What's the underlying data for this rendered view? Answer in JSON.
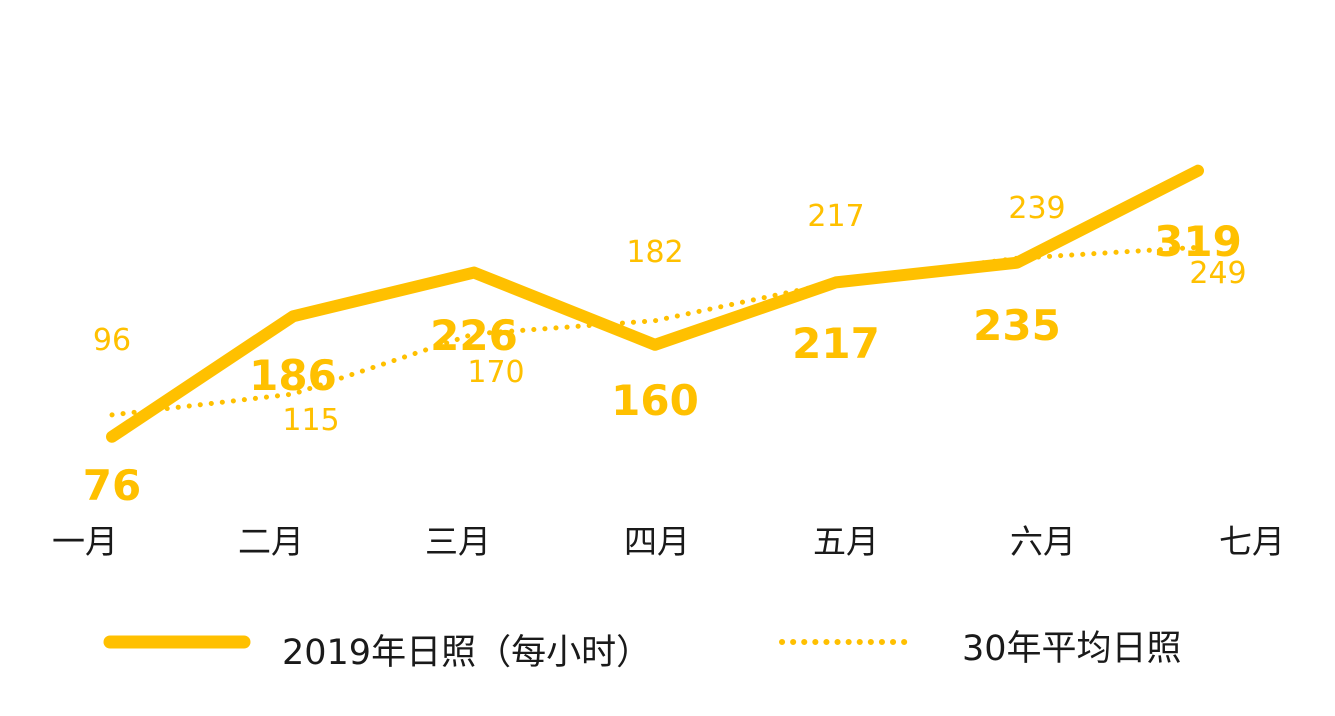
{
  "colors": {
    "accent": "#FFC000",
    "text": "#1a1a1a"
  },
  "chart_data": {
    "type": "line",
    "categories": [
      "一月",
      "二月",
      "三月",
      "四月",
      "五月",
      "六月",
      "七月"
    ],
    "series": [
      {
        "name": "2019年日照（每小时）",
        "style": "solid",
        "values": [
          76,
          186,
          226,
          160,
          217,
          235,
          319
        ]
      },
      {
        "name": "30年平均日照",
        "style": "dotted",
        "values": [
          96,
          115,
          170,
          182,
          217,
          239,
          249
        ]
      }
    ],
    "legend": "bottom",
    "grid": false
  }
}
